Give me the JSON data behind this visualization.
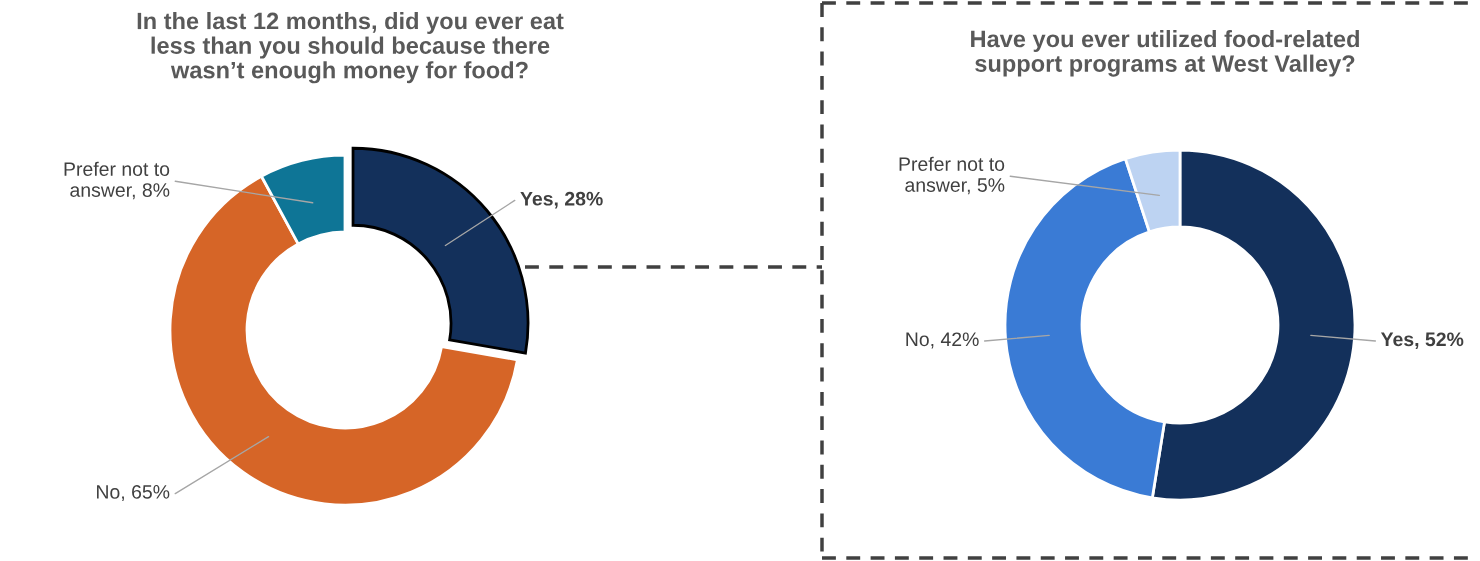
{
  "chart_data": [
    {
      "type": "donut",
      "title": "In the last 12 months, did you ever eat\nless than you should because there\nwasn’t enough money for food?",
      "categories": [
        "Yes",
        "No",
        "Prefer not to\nanswer"
      ],
      "values": [
        28,
        65,
        8
      ],
      "value_labels": [
        "28%",
        "65%",
        "8%"
      ],
      "colors": [
        "#13305b",
        "#d66527",
        "#0e7596"
      ]
    },
    {
      "type": "donut",
      "title": "Have you ever utilized food-related\nsupport programs at West Valley?",
      "categories": [
        "Yes",
        "No",
        "Prefer not to\nanswer"
      ],
      "values": [
        52,
        42,
        5
      ],
      "value_labels": [
        "52%",
        "42%",
        "5%"
      ],
      "colors": [
        "#13305b",
        "#3a7bd5",
        "#bdd3f2"
      ]
    }
  ]
}
